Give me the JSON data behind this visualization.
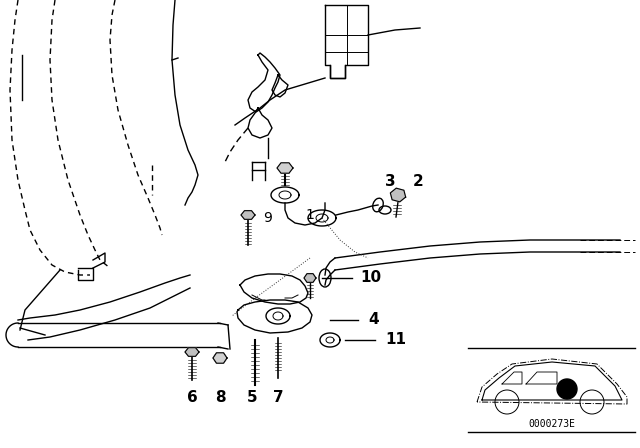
{
  "bg_color": "#ffffff",
  "diagram_code": "0000273E",
  "line_color": "#000000",
  "text_color": "#000000",
  "label_fontsize": 10,
  "code_fontsize": 7,
  "bold_label_fontsize": 11
}
